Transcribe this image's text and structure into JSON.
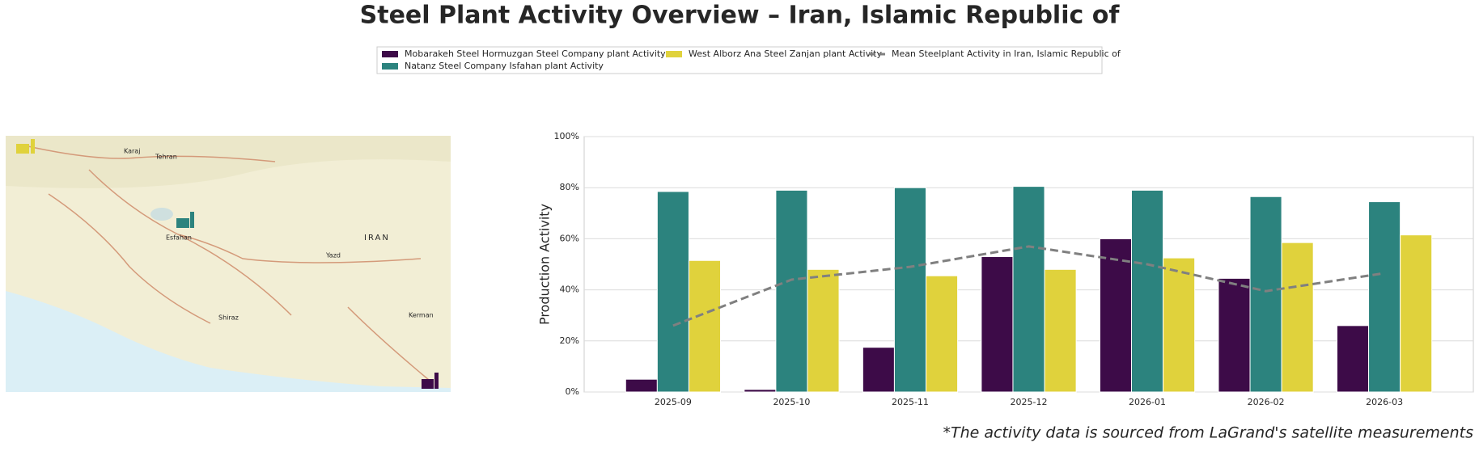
{
  "chart_data": {
    "type": "bar",
    "title": "Steel Plant Activity Overview – Iran, Islamic Republic of",
    "ylabel": "Production Activity",
    "footnote": "*The activity data is sourced from LaGrand's satellite measurements",
    "categories": [
      "2025-09",
      "2025-10",
      "2025-11",
      "2025-12",
      "2026-01",
      "2026-02",
      "2026-03"
    ],
    "series": [
      {
        "name": "Mobarakeh Steel Hormuzgan Steel Company plant Activity",
        "kind": "bar",
        "color": "#3d0b48",
        "values": [
          5,
          1,
          17.5,
          53,
          60,
          44.5,
          26
        ]
      },
      {
        "name": "Natanz Steel Company Isfahan plant Activity",
        "kind": "bar",
        "color": "#2c837e",
        "values": [
          78.5,
          79,
          80,
          80.5,
          79,
          76.5,
          74.5
        ]
      },
      {
        "name": "West Alborz Ana Steel Zanjan plant Activity",
        "kind": "bar",
        "color": "#e0d23c",
        "values": [
          51.5,
          48,
          45.5,
          48,
          52.5,
          58.5,
          61.5
        ]
      },
      {
        "name": "Mean Steelplant Activity in Iran, Islamic Republic of",
        "kind": "line",
        "dashed": true,
        "color": "#808080",
        "values": [
          26,
          44,
          49,
          57,
          50,
          39.5,
          46.5
        ]
      }
    ],
    "ylim": [
      0,
      100
    ],
    "yticks": [
      {
        "value": 0,
        "label": "0%"
      },
      {
        "value": 20,
        "label": "20%"
      },
      {
        "value": 40,
        "label": "40%"
      },
      {
        "value": 60,
        "label": "60%"
      },
      {
        "value": 80,
        "label": "80%"
      },
      {
        "value": 100,
        "label": "100%"
      }
    ],
    "grid": true
  },
  "map": {
    "labels": [
      "IRAN",
      "Tehran",
      "Karaj",
      "Esfahan",
      "Yazd",
      "Shiraz",
      "Kerman"
    ]
  }
}
